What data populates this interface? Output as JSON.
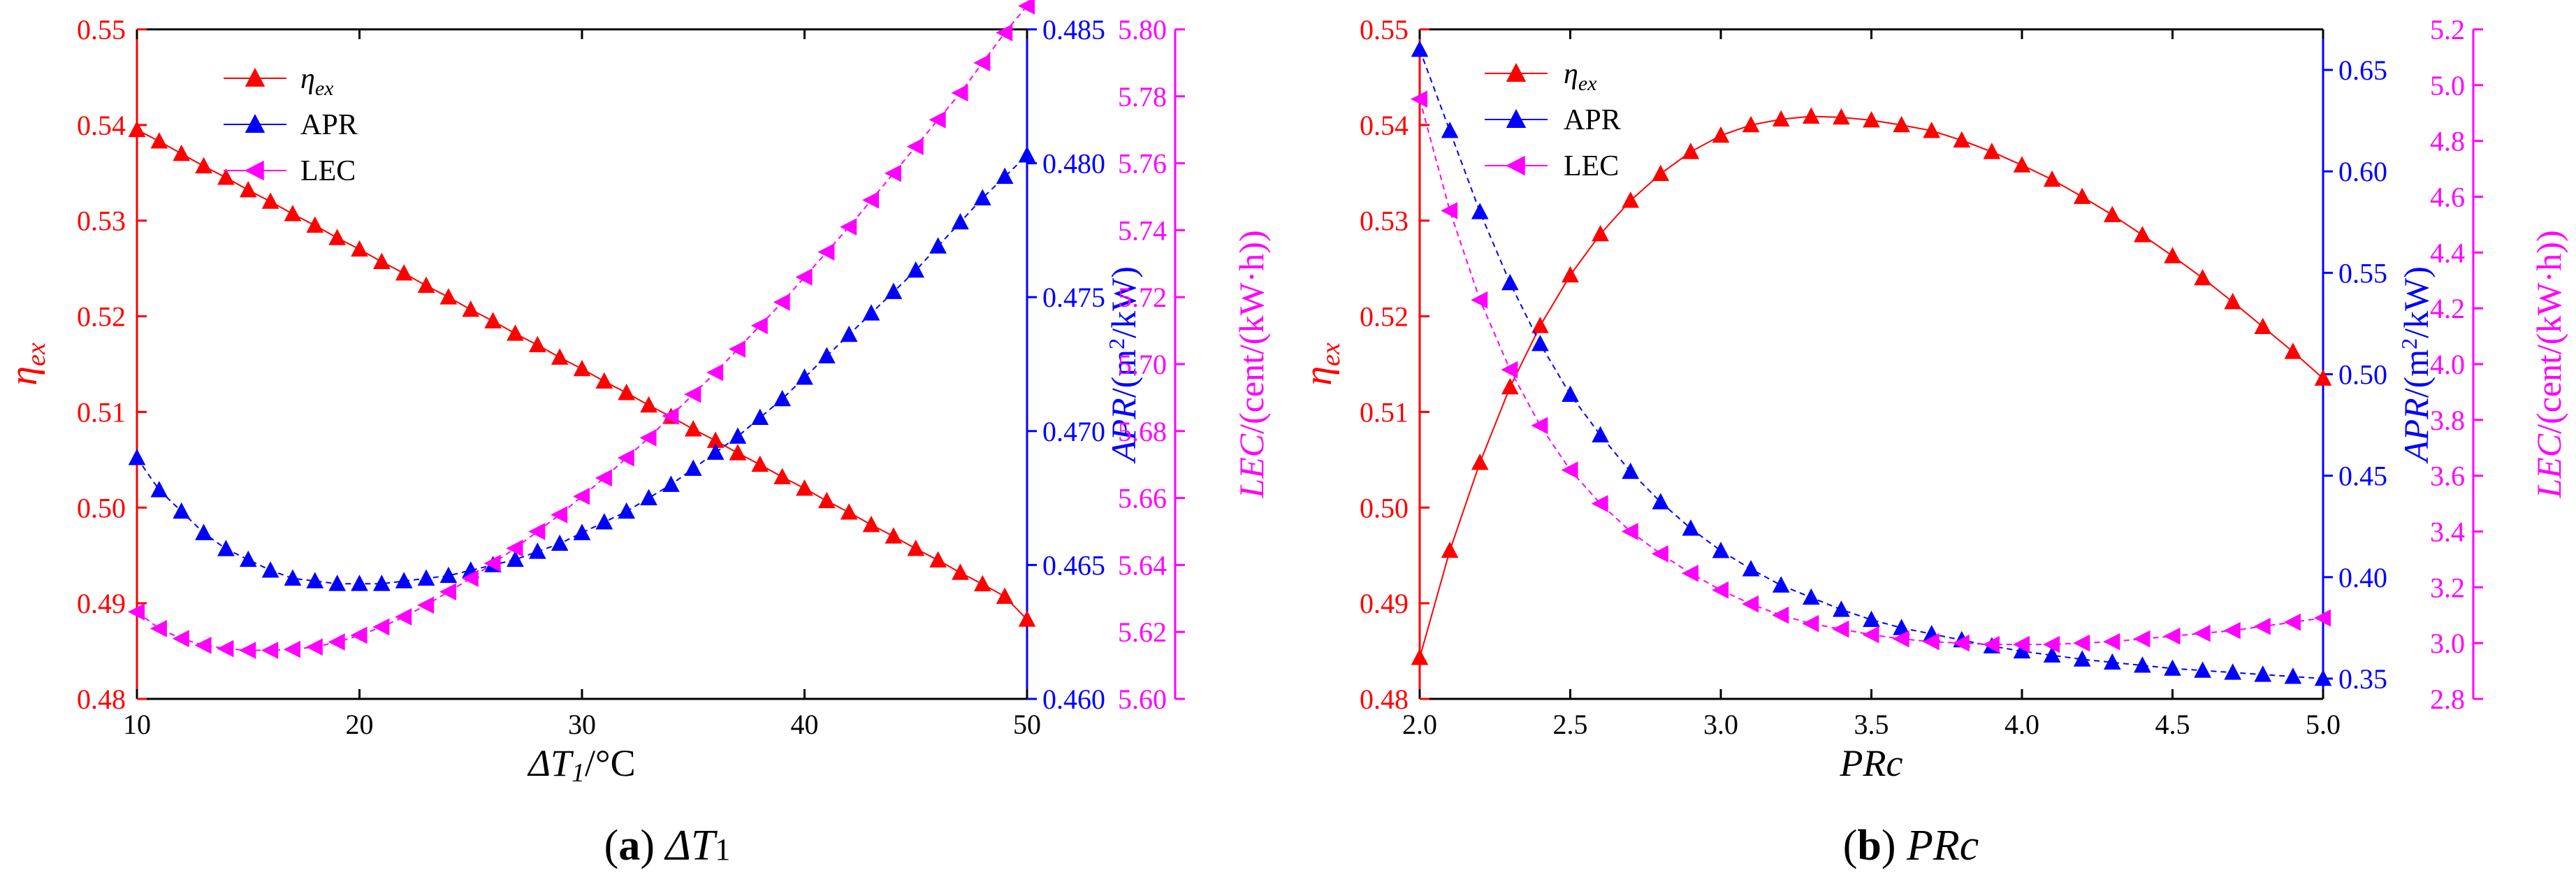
{
  "colors": {
    "eta": "#ff0000",
    "apr": "#0000ff",
    "lec": "#ff00ff",
    "frame": "#000000"
  },
  "chart_data": [
    {
      "type": "line",
      "id": "a",
      "caption_letter": "a",
      "caption_text": "ΔT",
      "caption_sub": "1",
      "xlabel": "ΔT",
      "xlabel_sub": "1",
      "xlabel_unit": "/°C",
      "xlim": [
        10,
        50
      ],
      "xticks": [
        "10",
        "20",
        "30",
        "40",
        "50"
      ],
      "x": [
        10,
        11,
        12,
        13,
        14,
        15,
        16,
        17,
        18,
        19,
        20,
        21,
        22,
        23,
        24,
        25,
        26,
        27,
        28,
        29,
        30,
        31,
        32,
        33,
        34,
        35,
        36,
        37,
        38,
        39,
        40,
        41,
        42,
        43,
        44,
        45,
        46,
        47,
        48,
        49,
        50
      ],
      "axes": {
        "left": {
          "label_main": "η",
          "label_sub": "ex",
          "lim": [
            0.48,
            0.55
          ],
          "ticks": [
            "0.48",
            "0.49",
            "0.50",
            "0.51",
            "0.52",
            "0.53",
            "0.54",
            "0.55"
          ]
        },
        "right1": {
          "label": "APR/(m²/kW)",
          "label_ital": "APR",
          "label_rest": "/(m",
          "label_sup": "2",
          "label_tail": "/kW)",
          "lim": [
            0.46,
            0.485
          ],
          "ticks": [
            "0.460",
            "0.465",
            "0.470",
            "0.475",
            "0.480",
            "0.485"
          ]
        },
        "right2": {
          "label": "LEC/(cent/(kW·h))",
          "label_ital": "LEC",
          "label_rest": "/(cent/(kW·h))",
          "lim": [
            5.6,
            5.8
          ],
          "ticks": [
            "5.60",
            "5.62",
            "5.64",
            "5.66",
            "5.68",
            "5.70",
            "5.72",
            "5.74",
            "5.76",
            "5.78",
            "5.80"
          ]
        }
      },
      "legend": [
        "η_ex",
        "APR",
        "LEC"
      ],
      "legend_main": "η",
      "legend_sub": "ex",
      "series": [
        {
          "name": "η_ex",
          "axis": "left",
          "marker": "triangle-up",
          "values": [
            0.5395,
            0.5383,
            0.537,
            0.5357,
            0.5345,
            0.5332,
            0.532,
            0.5307,
            0.5295,
            0.5282,
            0.527,
            0.5257,
            0.5245,
            0.5232,
            0.522,
            0.5207,
            0.5195,
            0.5182,
            0.517,
            0.5157,
            0.5145,
            0.5132,
            0.512,
            0.5107,
            0.5095,
            0.5082,
            0.507,
            0.5057,
            0.5045,
            0.5032,
            0.502,
            0.5007,
            0.4995,
            0.4982,
            0.497,
            0.4957,
            0.4945,
            0.4932,
            0.492,
            0.4907,
            0.4883
          ]
        },
        {
          "name": "APR",
          "axis": "right1",
          "marker": "triangle-up",
          "values": [
            0.469,
            0.4678,
            0.467,
            0.4662,
            0.4656,
            0.4652,
            0.4648,
            0.4645,
            0.4644,
            0.4643,
            0.4643,
            0.4643,
            0.4644,
            0.4645,
            0.4646,
            0.4648,
            0.465,
            0.4652,
            0.4655,
            0.4658,
            0.4662,
            0.4666,
            0.467,
            0.4675,
            0.468,
            0.4686,
            0.4692,
            0.4698,
            0.4705,
            0.4712,
            0.472,
            0.4728,
            0.4736,
            0.4744,
            0.4752,
            0.476,
            0.4769,
            0.4778,
            0.4787,
            0.4795,
            0.4803
          ]
        },
        {
          "name": "LEC",
          "axis": "right2",
          "marker": "triangle-left",
          "values": [
            5.626,
            5.621,
            5.618,
            5.616,
            5.615,
            5.6145,
            5.6145,
            5.6148,
            5.6155,
            5.617,
            5.619,
            5.6215,
            5.6245,
            5.628,
            5.632,
            5.636,
            5.6405,
            5.645,
            5.65,
            5.655,
            5.6605,
            5.666,
            5.672,
            5.678,
            5.6845,
            5.691,
            5.6975,
            5.7045,
            5.7115,
            5.7185,
            5.726,
            5.7335,
            5.741,
            5.749,
            5.757,
            5.765,
            5.773,
            5.781,
            5.79,
            5.799,
            5.807
          ]
        }
      ]
    },
    {
      "type": "line",
      "id": "b",
      "caption_letter": "b",
      "caption_text": "PRc",
      "caption_sub": "",
      "xlabel": "PRc",
      "xlabel_sub": "",
      "xlabel_unit": "",
      "xlim": [
        2.0,
        5.0
      ],
      "xticks": [
        "2.0",
        "2.5",
        "3.0",
        "3.5",
        "4.0",
        "4.5",
        "5.0"
      ],
      "x": [
        2.0,
        2.1,
        2.2,
        2.3,
        2.4,
        2.5,
        2.6,
        2.7,
        2.8,
        2.9,
        3.0,
        3.1,
        3.2,
        3.3,
        3.4,
        3.5,
        3.6,
        3.7,
        3.8,
        3.9,
        4.0,
        4.1,
        4.2,
        4.3,
        4.4,
        4.5,
        4.6,
        4.7,
        4.8,
        4.9,
        5.0
      ],
      "axes": {
        "left": {
          "label_main": "η",
          "label_sub": "ex",
          "lim": [
            0.48,
            0.55
          ],
          "ticks": [
            "0.48",
            "0.49",
            "0.50",
            "0.51",
            "0.52",
            "0.53",
            "0.54",
            "0.55"
          ]
        },
        "right1": {
          "label": "APR/(m²/kW)",
          "label_ital": "APR",
          "label_rest": "/(m",
          "label_sup": "2",
          "label_tail": "/kW)",
          "lim": [
            0.34,
            0.67
          ],
          "ticks": [
            "0.35",
            "0.40",
            "0.45",
            "0.50",
            "0.55",
            "0.60",
            "0.65"
          ]
        },
        "right2": {
          "label": "LEC/(cent/(kW·h))",
          "label_ital": "LEC",
          "label_rest": "/(cent/(kW·h))",
          "lim": [
            2.8,
            5.2
          ],
          "ticks": [
            "2.8",
            "3.0",
            "3.2",
            "3.4",
            "3.6",
            "3.8",
            "4.0",
            "4.2",
            "4.4",
            "4.6",
            "4.8",
            "5.0",
            "5.2"
          ]
        }
      },
      "legend": [
        "η_ex",
        "APR",
        "LEC"
      ],
      "legend_main": "η",
      "legend_sub": "ex",
      "series": [
        {
          "name": "η_ex",
          "axis": "left",
          "marker": "triangle-up",
          "values": [
            0.4843,
            0.4955,
            0.5047,
            0.5126,
            0.519,
            0.5243,
            0.5286,
            0.5321,
            0.5349,
            0.5372,
            0.5389,
            0.54,
            0.5406,
            0.5409,
            0.5408,
            0.5405,
            0.54,
            0.5394,
            0.5384,
            0.5372,
            0.5358,
            0.5343,
            0.5325,
            0.5306,
            0.5285,
            0.5263,
            0.524,
            0.5215,
            0.5189,
            0.5163,
            0.5135
          ]
        },
        {
          "name": "APR",
          "axis": "right1",
          "marker": "triangle-up",
          "values": [
            0.66,
            0.62,
            0.58,
            0.545,
            0.515,
            0.49,
            0.47,
            0.452,
            0.437,
            0.424,
            0.413,
            0.404,
            0.396,
            0.39,
            0.384,
            0.379,
            0.375,
            0.372,
            0.369,
            0.366,
            0.3635,
            0.3615,
            0.3595,
            0.358,
            0.3565,
            0.355,
            0.354,
            0.353,
            0.352,
            0.351,
            0.35
          ]
        },
        {
          "name": "LEC",
          "axis": "right2",
          "marker": "triangle-left",
          "values": [
            4.95,
            4.55,
            4.23,
            3.98,
            3.78,
            3.62,
            3.5,
            3.4,
            3.32,
            3.25,
            3.19,
            3.14,
            3.1,
            3.07,
            3.05,
            3.03,
            3.015,
            3.005,
            3.0,
            2.995,
            2.995,
            2.995,
            3.0,
            3.005,
            3.015,
            3.025,
            3.035,
            3.045,
            3.06,
            3.075,
            3.09
          ]
        }
      ]
    }
  ]
}
